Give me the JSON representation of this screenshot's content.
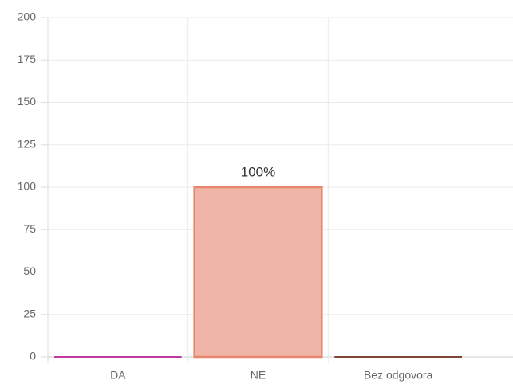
{
  "chart_data": {
    "type": "bar",
    "categories": [
      "DA",
      "NE",
      "Bez odgovora"
    ],
    "values": [
      0,
      100,
      0
    ],
    "value_labels": [
      null,
      "100%",
      null
    ],
    "colors": [
      "#c0399f",
      "#e8876e",
      "#7d4636"
    ],
    "fill_colors": [
      "#d96fbf",
      "#efb6a7",
      "#a06a5a"
    ],
    "ylim": [
      0,
      200
    ],
    "yticks": [
      0,
      25,
      50,
      75,
      100,
      125,
      150,
      175,
      200
    ],
    "grid": true
  }
}
